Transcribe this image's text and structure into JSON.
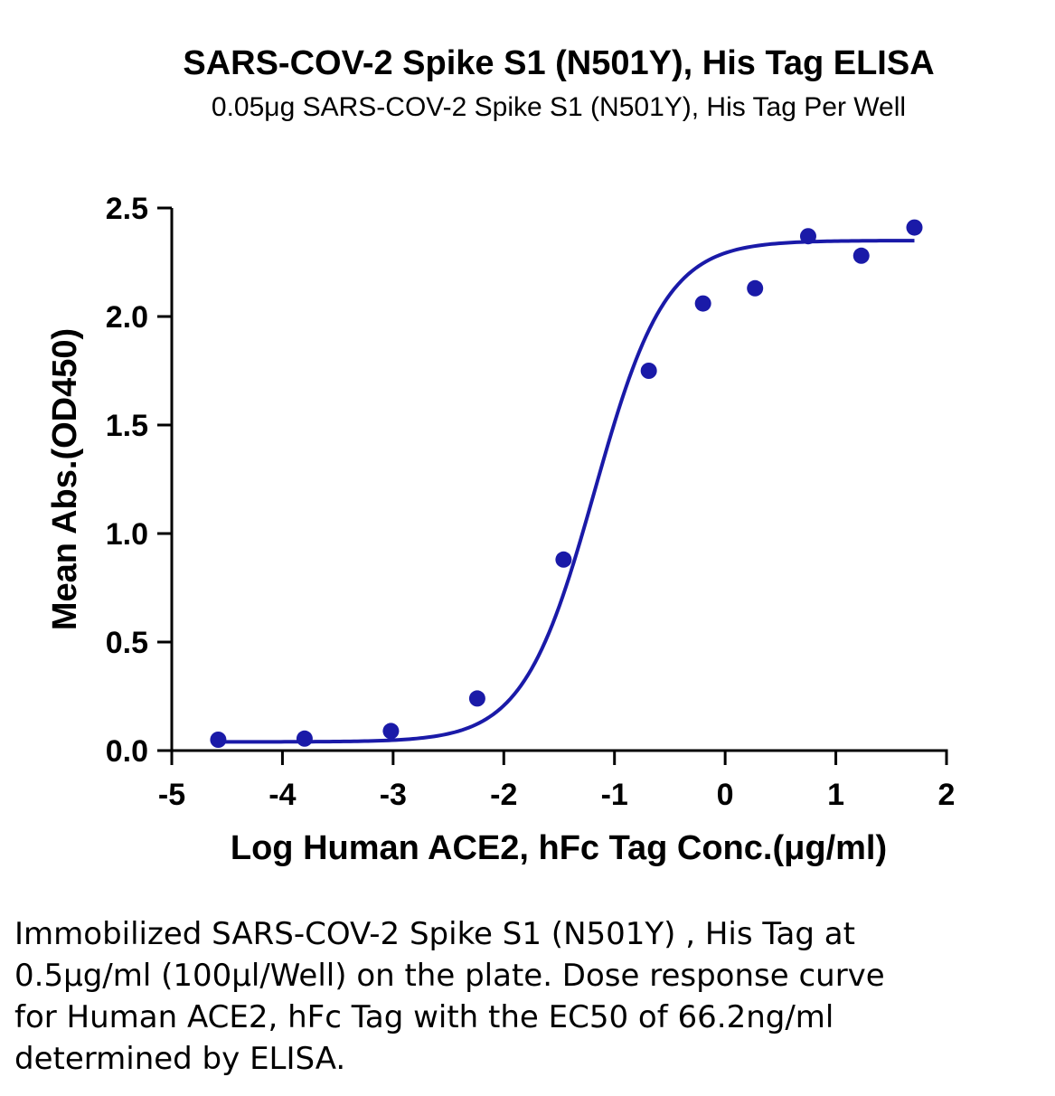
{
  "chart_data": {
    "type": "scatter",
    "title": "SARS-COV-2 Spike S1 (N501Y), His Tag ELISA",
    "subtitle": "0.05μg SARS-COV-2 Spike S1 (N501Y), His Tag Per Well",
    "xlabel": "Log Human ACE2, hFc Tag Conc.(μg/ml)",
    "ylabel": "Mean Abs.(OD450)",
    "xlim": [
      -5,
      2
    ],
    "ylim": [
      0,
      2.5
    ],
    "xticks": [
      -5,
      -4,
      -3,
      -2,
      -1,
      0,
      1,
      2
    ],
    "xtick_labels": [
      "-5",
      "-4",
      "-3",
      "-2",
      "-1",
      "0",
      "1",
      "2"
    ],
    "yticks": [
      0,
      0.5,
      1,
      1.5,
      2,
      2.5
    ],
    "ytick_labels": [
      "0.0",
      "0.5",
      "1.0",
      "1.5",
      "2.0",
      "2.5"
    ],
    "grid": false,
    "color": "#1a1aa8",
    "points": {
      "x": [
        -4.58,
        -3.8,
        -3.02,
        -2.24,
        -1.46,
        -0.69,
        -0.2,
        0.27,
        0.75,
        1.23,
        1.71
      ],
      "y": [
        0.05,
        0.055,
        0.09,
        0.24,
        0.88,
        1.75,
        2.06,
        2.13,
        2.37,
        2.28,
        2.41
      ]
    },
    "fit_curve": {
      "model": "4PL",
      "bottom": 0.04,
      "top": 2.35,
      "log_ec50": -1.18,
      "hill_slope": 1.35,
      "x_range": [
        -4.58,
        1.71
      ]
    }
  },
  "caption": "Immobilized SARS-COV-2 Spike S1 (N501Y) , His Tag at 0.5μg/ml (100μl/Well) on the plate. Dose response curve for Human ACE2, hFc Tag with the EC50 of 66.2ng/ml determined by ELISA."
}
